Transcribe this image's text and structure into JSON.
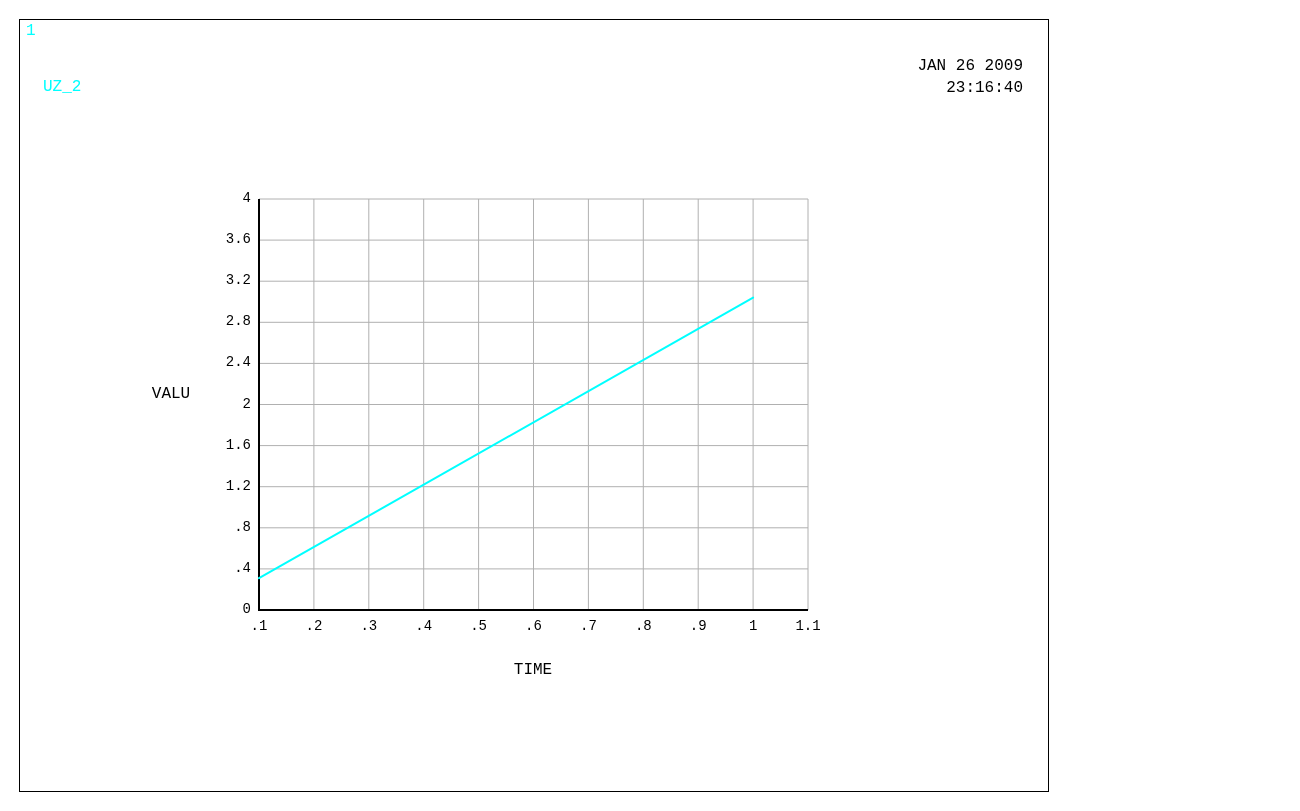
{
  "chart_data": {
    "type": "line",
    "xlabel": "TIME",
    "ylabel": "VALU",
    "annotations": [
      "1",
      "JAN 26 2009",
      "23:16:40"
    ],
    "x": [
      0.1,
      1.0
    ],
    "series": [
      {
        "name": "UZ_2",
        "color": "#00ffff",
        "values": [
          0.31,
          3.04
        ]
      }
    ],
    "xlim": [
      0.1,
      1.1
    ],
    "xticks": [
      {
        "value": 0.1,
        "label": ".1"
      },
      {
        "value": 0.2,
        "label": ".2"
      },
      {
        "value": 0.3,
        "label": ".3"
      },
      {
        "value": 0.4,
        "label": ".4"
      },
      {
        "value": 0.5,
        "label": ".5"
      },
      {
        "value": 0.6,
        "label": ".6"
      },
      {
        "value": 0.7,
        "label": ".7"
      },
      {
        "value": 0.8,
        "label": ".8"
      },
      {
        "value": 0.9,
        "label": ".9"
      },
      1,
      1.1
    ],
    "ylim": [
      0,
      4
    ],
    "yticks": [
      0,
      {
        "value": 0.4,
        "label": ".4"
      },
      {
        "value": 0.8,
        "label": ".8"
      },
      1.2,
      1.6,
      2,
      2.4,
      2.8,
      3.2,
      3.6,
      4
    ],
    "grid": true,
    "legend": "top left",
    "marker": "none",
    "line_style": "solid"
  }
}
